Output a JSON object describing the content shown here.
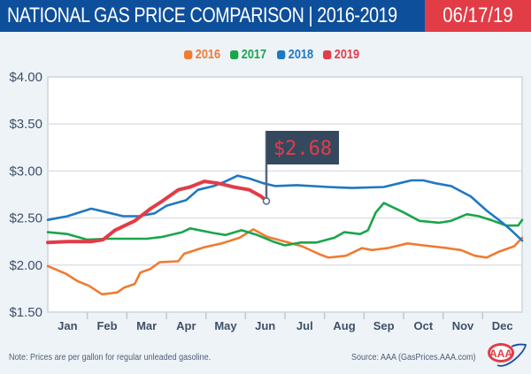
{
  "header": {
    "title": "NATIONAL GAS PRICE COMPARISON | 2016-2019",
    "date": "06/17/19",
    "colors": {
      "title_bg": "#0e4f9b",
      "date_bg": "#e23c47"
    }
  },
  "footer": {
    "note": "Note: Prices are per gallon for regular unleaded gasoline.",
    "source": "Source: AAA (GasPrices.AAA.com)",
    "logo": "aaa-logo-icon"
  },
  "chart_data": {
    "type": "line",
    "title": "NATIONAL GAS PRICE COMPARISON | 2016-2019",
    "xlabel": "",
    "ylabel": "",
    "categories": [
      "Jan",
      "Feb",
      "Mar",
      "Apr",
      "May",
      "Jun",
      "Jul",
      "Aug",
      "Sep",
      "Oct",
      "Nov",
      "Dec"
    ],
    "xlim": [
      0,
      12
    ],
    "ylim": [
      1.5,
      4.0
    ],
    "yticks": [
      1.5,
      2.0,
      2.5,
      3.0,
      3.5,
      4.0
    ],
    "ytick_labels": [
      "$1.50",
      "$2.00",
      "$2.50",
      "$3.00",
      "$3.50",
      "$4.00"
    ],
    "grid": true,
    "legend_position": "top-center",
    "annotation": {
      "label": "$2.68",
      "series": "2019",
      "x": 5.53,
      "y": 2.68
    },
    "series": [
      {
        "name": "2016",
        "color": "#ef7b31",
        "points": [
          [
            0,
            1.99
          ],
          [
            0.45,
            1.91
          ],
          [
            0.75,
            1.83
          ],
          [
            1.04,
            1.78
          ],
          [
            1.37,
            1.69
          ],
          [
            1.6,
            1.7
          ],
          [
            1.76,
            1.71
          ],
          [
            1.93,
            1.76
          ],
          [
            2.2,
            1.8
          ],
          [
            2.34,
            1.92
          ],
          [
            2.6,
            1.96
          ],
          [
            2.83,
            2.03
          ],
          [
            3.3,
            2.04
          ],
          [
            3.45,
            2.12
          ],
          [
            3.96,
            2.19
          ],
          [
            4.4,
            2.23
          ],
          [
            4.85,
            2.29
          ],
          [
            5.2,
            2.38
          ],
          [
            5.55,
            2.3
          ],
          [
            6.0,
            2.25
          ],
          [
            6.43,
            2.2
          ],
          [
            6.9,
            2.11
          ],
          [
            7.1,
            2.08
          ],
          [
            7.55,
            2.1
          ],
          [
            7.95,
            2.18
          ],
          [
            8.2,
            2.16
          ],
          [
            8.6,
            2.18
          ],
          [
            9.1,
            2.23
          ],
          [
            9.5,
            2.21
          ],
          [
            10.1,
            2.18
          ],
          [
            10.45,
            2.16
          ],
          [
            10.8,
            2.1
          ],
          [
            11.1,
            2.08
          ],
          [
            11.4,
            2.14
          ],
          [
            11.8,
            2.2
          ],
          [
            12,
            2.29
          ]
        ]
      },
      {
        "name": "2017",
        "color": "#1aa54a",
        "points": [
          [
            0,
            2.35
          ],
          [
            0.5,
            2.33
          ],
          [
            1.0,
            2.27
          ],
          [
            1.5,
            2.28
          ],
          [
            2.0,
            2.28
          ],
          [
            2.5,
            2.28
          ],
          [
            2.9,
            2.3
          ],
          [
            3.4,
            2.35
          ],
          [
            3.6,
            2.39
          ],
          [
            4.2,
            2.34
          ],
          [
            4.5,
            2.32
          ],
          [
            4.9,
            2.37
          ],
          [
            5.3,
            2.32
          ],
          [
            5.7,
            2.25
          ],
          [
            6.0,
            2.21
          ],
          [
            6.4,
            2.24
          ],
          [
            6.8,
            2.24
          ],
          [
            7.25,
            2.29
          ],
          [
            7.5,
            2.35
          ],
          [
            7.9,
            2.33
          ],
          [
            8.1,
            2.37
          ],
          [
            8.3,
            2.56
          ],
          [
            8.5,
            2.66
          ],
          [
            9.0,
            2.56
          ],
          [
            9.4,
            2.47
          ],
          [
            9.9,
            2.45
          ],
          [
            10.2,
            2.47
          ],
          [
            10.6,
            2.54
          ],
          [
            10.9,
            2.52
          ],
          [
            11.2,
            2.48
          ],
          [
            11.6,
            2.42
          ],
          [
            11.9,
            2.42
          ],
          [
            12,
            2.48
          ]
        ]
      },
      {
        "name": "2018",
        "color": "#1f78c1",
        "points": [
          [
            0,
            2.48
          ],
          [
            0.5,
            2.52
          ],
          [
            1.1,
            2.6
          ],
          [
            1.5,
            2.56
          ],
          [
            1.9,
            2.52
          ],
          [
            2.3,
            2.52
          ],
          [
            2.7,
            2.55
          ],
          [
            3.0,
            2.63
          ],
          [
            3.5,
            2.69
          ],
          [
            3.8,
            2.8
          ],
          [
            4.2,
            2.84
          ],
          [
            4.5,
            2.89
          ],
          [
            4.8,
            2.95
          ],
          [
            5.1,
            2.92
          ],
          [
            5.45,
            2.87
          ],
          [
            5.75,
            2.84
          ],
          [
            6.3,
            2.85
          ],
          [
            7.1,
            2.83
          ],
          [
            7.7,
            2.82
          ],
          [
            8.5,
            2.83
          ],
          [
            8.9,
            2.87
          ],
          [
            9.2,
            2.9
          ],
          [
            9.5,
            2.9
          ],
          [
            9.8,
            2.87
          ],
          [
            10.2,
            2.84
          ],
          [
            10.7,
            2.73
          ],
          [
            11.1,
            2.58
          ],
          [
            11.5,
            2.45
          ],
          [
            11.7,
            2.38
          ],
          [
            12,
            2.26
          ]
        ]
      },
      {
        "name": "2019",
        "color": "#e23c47",
        "points": [
          [
            0,
            2.24
          ],
          [
            0.5,
            2.25
          ],
          [
            1.1,
            2.25
          ],
          [
            1.4,
            2.27
          ],
          [
            1.7,
            2.37
          ],
          [
            2.2,
            2.47
          ],
          [
            2.6,
            2.6
          ],
          [
            2.9,
            2.68
          ],
          [
            3.3,
            2.8
          ],
          [
            3.6,
            2.83
          ],
          [
            3.96,
            2.89
          ],
          [
            4.3,
            2.87
          ],
          [
            4.7,
            2.83
          ],
          [
            5.1,
            2.8
          ],
          [
            5.4,
            2.73
          ],
          [
            5.53,
            2.68
          ]
        ]
      }
    ]
  }
}
